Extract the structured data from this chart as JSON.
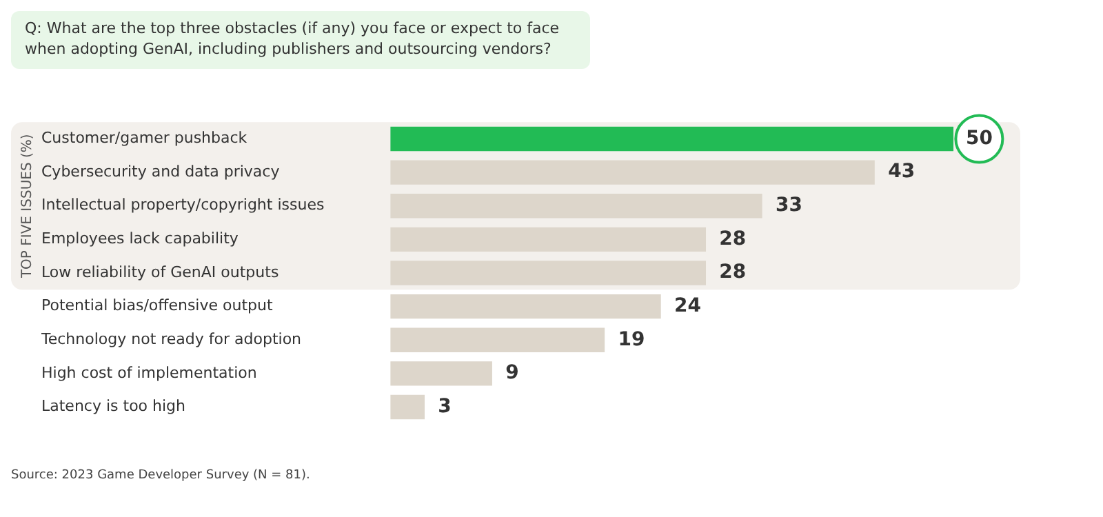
{
  "chart_data": {
    "type": "bar",
    "orientation": "horizontal",
    "title": "Q: What are the top three obstacles (if any) you face or expect to face when adopting GenAI, including publishers and outsourcing vendors?",
    "categories": [
      "Customer/gamer pushback",
      "Cybersecurity and data privacy",
      "Intellectual property/copyright issues",
      "Employees lack capability",
      "Low reliability of GenAI outputs",
      "Potential bias/offensive output",
      "Technology not ready for adoption",
      "High cost of implementation",
      "Latency is too high"
    ],
    "values": [
      50,
      43,
      33,
      28,
      28,
      24,
      19,
      9,
      3
    ],
    "colors": [
      "#22bb55",
      "#ddd6cb",
      "#ddd6cb",
      "#ddd6cb",
      "#ddd6cb",
      "#ddd6cb",
      "#ddd6cb",
      "#ddd6cb",
      "#ddd6cb"
    ],
    "data_labels": true,
    "bands": [
      {
        "axis": "y",
        "from": "Customer/gamer pushback",
        "to": "Low reliability of GenAI outputs",
        "label": "TOP FIVE ISSUES (%)",
        "color": "#f3f0ec"
      }
    ],
    "annotations": [
      "Source: 2023 Game Developer Survey (N = 81)."
    ],
    "grid": false,
    "legend": false
  }
}
